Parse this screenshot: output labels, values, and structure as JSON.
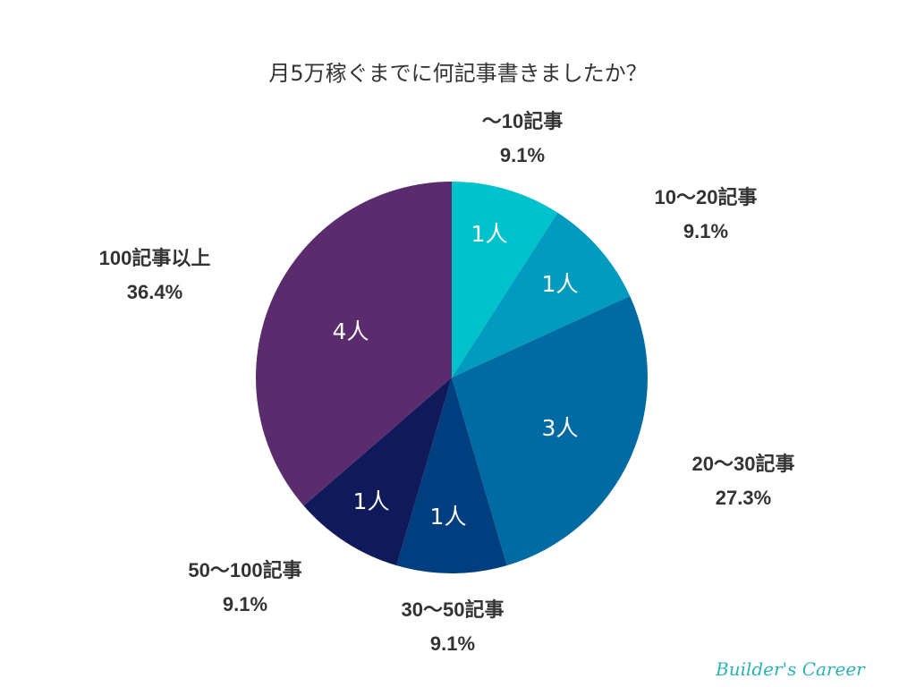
{
  "chart_data": {
    "type": "pie",
    "title": "月5万稼ぐまでに何記事書きましたか？",
    "categories": [
      "〜10記事",
      "10〜20記事",
      "20〜30記事",
      "30〜50記事",
      "50〜100記事",
      "100記事以上"
    ],
    "values": [
      1,
      1,
      3,
      1,
      1,
      4
    ],
    "percent_labels": [
      "9.1%",
      "9.1%",
      "27.3%",
      "9.1%",
      "9.1%",
      "36.4%"
    ],
    "count_labels": [
      "1人",
      "1人",
      "3人",
      "1人",
      "1人",
      "4人"
    ],
    "colors": [
      "#00C2CC",
      "#009BBF",
      "#006BA3",
      "#003F7F",
      "#10195A",
      "#5A2C6D"
    ],
    "start_angle": "12 o'clock, clockwise"
  },
  "title": "月5万稼ぐまでに何記事書きましたか？",
  "labels": [
    {
      "name": "〜10記事",
      "pct": "9.1%",
      "count": "1人"
    },
    {
      "name": "10〜20記事",
      "pct": "9.1%",
      "count": "1人"
    },
    {
      "name": "20〜30記事",
      "pct": "27.3%",
      "count": "3人"
    },
    {
      "name": "30〜50記事",
      "pct": "9.1%",
      "count": "1人"
    },
    {
      "name": "50〜100記事",
      "pct": "9.1%",
      "count": "1人"
    },
    {
      "name": "100記事以上",
      "pct": "36.4%",
      "count": "4人"
    }
  ],
  "brand": "Builder's Career"
}
